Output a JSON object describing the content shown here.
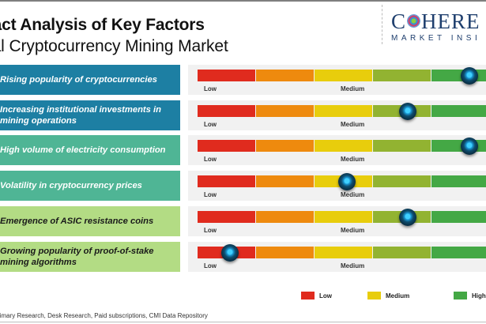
{
  "header": {
    "title": "pact Analysis of Key Factors",
    "subtitle": "bal Cryptocurrency Mining Market"
  },
  "logo": {
    "word_left": "C",
    "word_right": "HERE",
    "tagline": "MARKET INSI"
  },
  "scale": {
    "low_label": "Low",
    "medium_label": "Medium",
    "segment_colors": [
      "#e02b1e",
      "#ee8a0e",
      "#e8cd0c",
      "#92b331",
      "#44a845"
    ]
  },
  "factors": [
    {
      "label": "Rising popularity of cryptocurrencies",
      "impact_level": 0.93,
      "style": "blue"
    },
    {
      "label": "Increasing institutional investments in mining operations",
      "impact_level": 0.72,
      "style": "blue"
    },
    {
      "label": "High volume of electricity consumption",
      "impact_level": 0.93,
      "style": "teal"
    },
    {
      "label": "Volatility in cryptocurrency prices",
      "impact_level": 0.51,
      "style": "teal"
    },
    {
      "label": "Emergence of ASIC resistance coins",
      "impact_level": 0.72,
      "style": "lime"
    },
    {
      "label": "Growing popularity of proof-of-stake mining algorithms",
      "impact_level": 0.11,
      "style": "lime"
    }
  ],
  "legend": [
    {
      "label": "Low",
      "color": "#e02b1e"
    },
    {
      "label": "Medium",
      "color": "#e8cd0c"
    },
    {
      "label": "High",
      "color": "#44a845"
    }
  ],
  "source": "rimary Research, Desk Research, Paid subscriptions, CMI Data Repository"
}
